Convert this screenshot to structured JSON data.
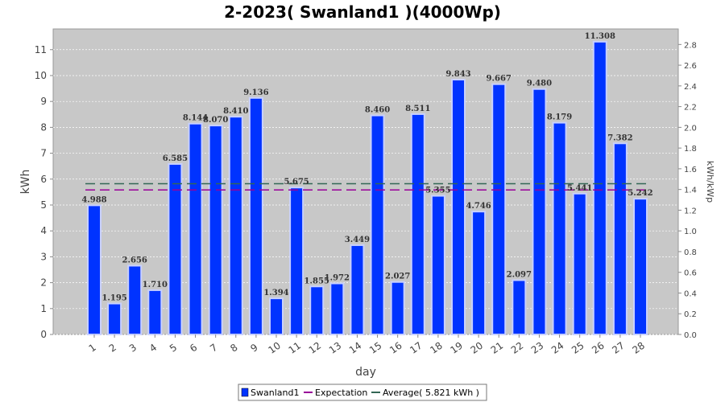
{
  "chart_data": {
    "type": "bar",
    "title": "2-2023( Swanland1 )(4000Wp)",
    "xlabel": "day",
    "ylabel": "kWh",
    "y2label": "kWh/kWp",
    "categories": [
      "1",
      "2",
      "3",
      "4",
      "5",
      "6",
      "7",
      "8",
      "9",
      "10",
      "11",
      "12",
      "13",
      "14",
      "15",
      "16",
      "17",
      "18",
      "19",
      "20",
      "21",
      "22",
      "23",
      "24",
      "25",
      "26",
      "27",
      "28"
    ],
    "series": [
      {
        "name": "Swanland1",
        "values": [
          4.988,
          1.195,
          2.656,
          1.71,
          6.585,
          8.144,
          8.07,
          8.41,
          9.136,
          1.394,
          5.675,
          1.855,
          1.972,
          3.449,
          8.46,
          2.027,
          8.511,
          5.355,
          9.843,
          4.746,
          9.667,
          2.097,
          9.48,
          8.179,
          5.441,
          11.308,
          7.382,
          5.242
        ],
        "labels": [
          "4.988",
          "1.195",
          "2.656",
          "1.710",
          "6.585",
          "8.144",
          "8.070",
          "8.410",
          "9.136",
          "1.394",
          "5.675",
          "1.855",
          "1.972",
          "3.449",
          "8.460",
          "2.027",
          "8.511",
          "5.355",
          "9.843",
          "4.746",
          "9.667",
          "2.097",
          "9.480",
          "8.179",
          "5.441",
          "11.308",
          "7.382",
          "5.242"
        ]
      }
    ],
    "lines": [
      {
        "name": "Expectation",
        "value": 5.58,
        "color": "#990099"
      },
      {
        "name": "Average( 5.821 kWh )",
        "value": 5.821,
        "color": "#336655"
      }
    ],
    "ylim": [
      0,
      11.8
    ],
    "yticks": [
      0,
      1,
      2,
      3,
      4,
      5,
      6,
      7,
      8,
      9,
      10,
      11
    ],
    "y2lim": [
      0,
      2.95
    ],
    "y2ticks": [
      "0.0",
      "0.2",
      "0.4",
      "0.6",
      "0.8",
      "1.0",
      "1.2",
      "1.4",
      "1.6",
      "1.8",
      "2.0",
      "2.2",
      "2.4",
      "2.6",
      "2.8"
    ],
    "grid": true,
    "legend_position": "bottom",
    "colors": {
      "bar": "#0033ff",
      "bar_edge": "#c8d0ff",
      "plot_bg": "#c8c8c8",
      "grid": "#ffffff"
    }
  }
}
